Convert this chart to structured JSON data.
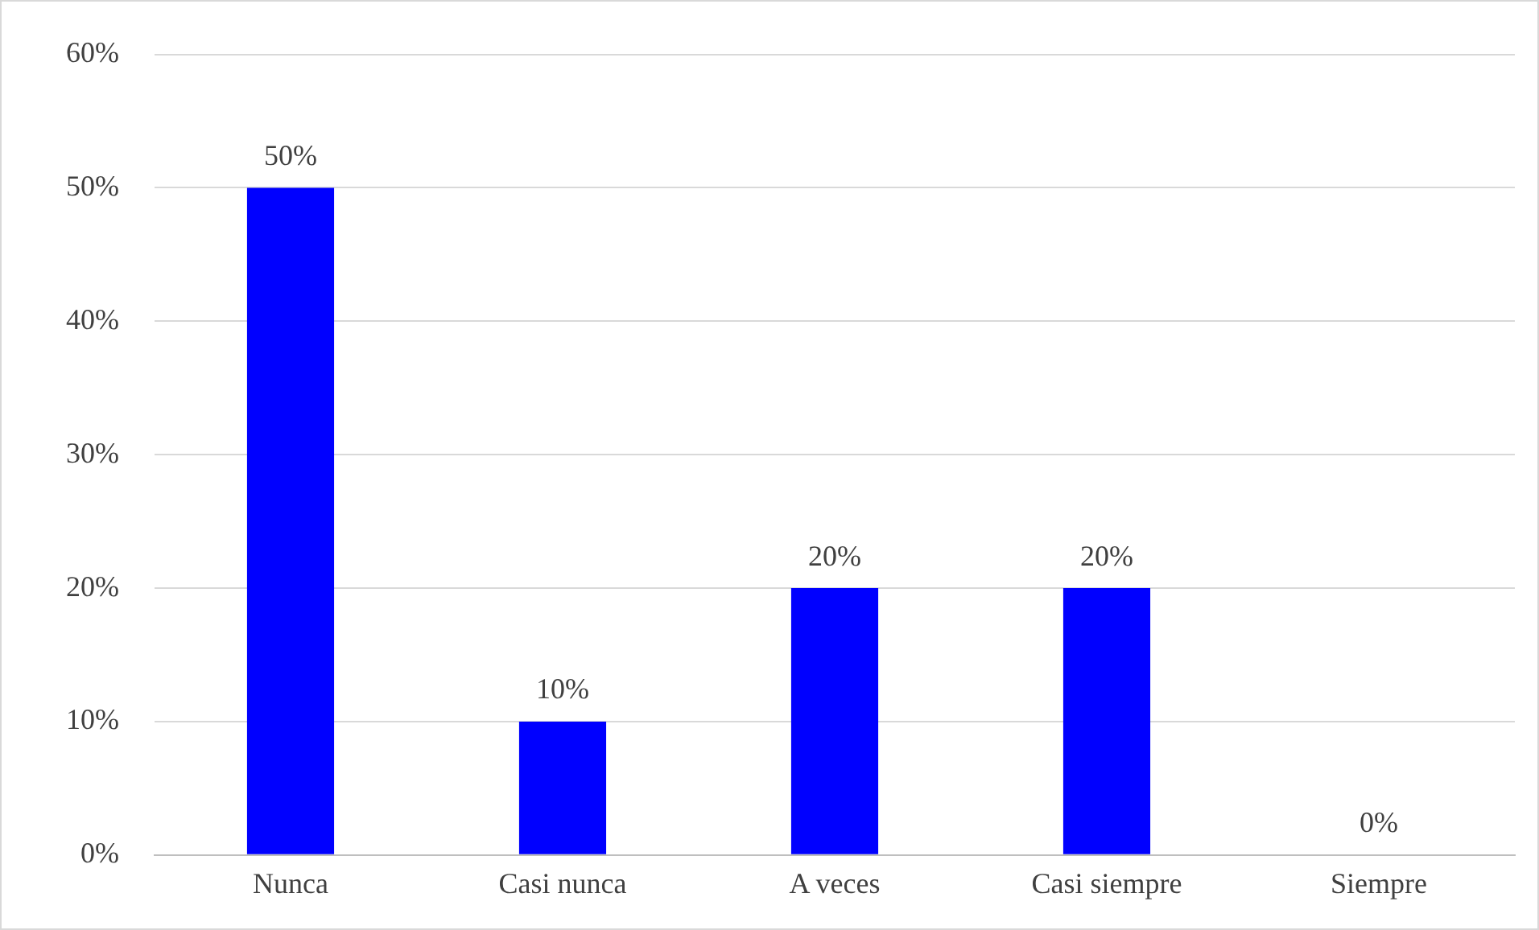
{
  "chart_data": {
    "type": "bar",
    "categories": [
      "Nunca",
      "Casi nunca",
      "A veces",
      "Casi siempre",
      "Siempre"
    ],
    "values": [
      50,
      10,
      20,
      20,
      0
    ],
    "value_labels": [
      "50%",
      "10%",
      "20%",
      "20%",
      "0%"
    ],
    "color": "#0000ff",
    "ylim": [
      0,
      60
    ],
    "yticks": [
      {
        "value": 0,
        "label": "0%"
      },
      {
        "value": 10,
        "label": "10%"
      },
      {
        "value": 20,
        "label": "20%"
      },
      {
        "value": 30,
        "label": "30%"
      },
      {
        "value": 40,
        "label": "40%"
      },
      {
        "value": 50,
        "label": "50%"
      },
      {
        "value": 60,
        "label": "60%"
      }
    ],
    "grid": "y"
  }
}
